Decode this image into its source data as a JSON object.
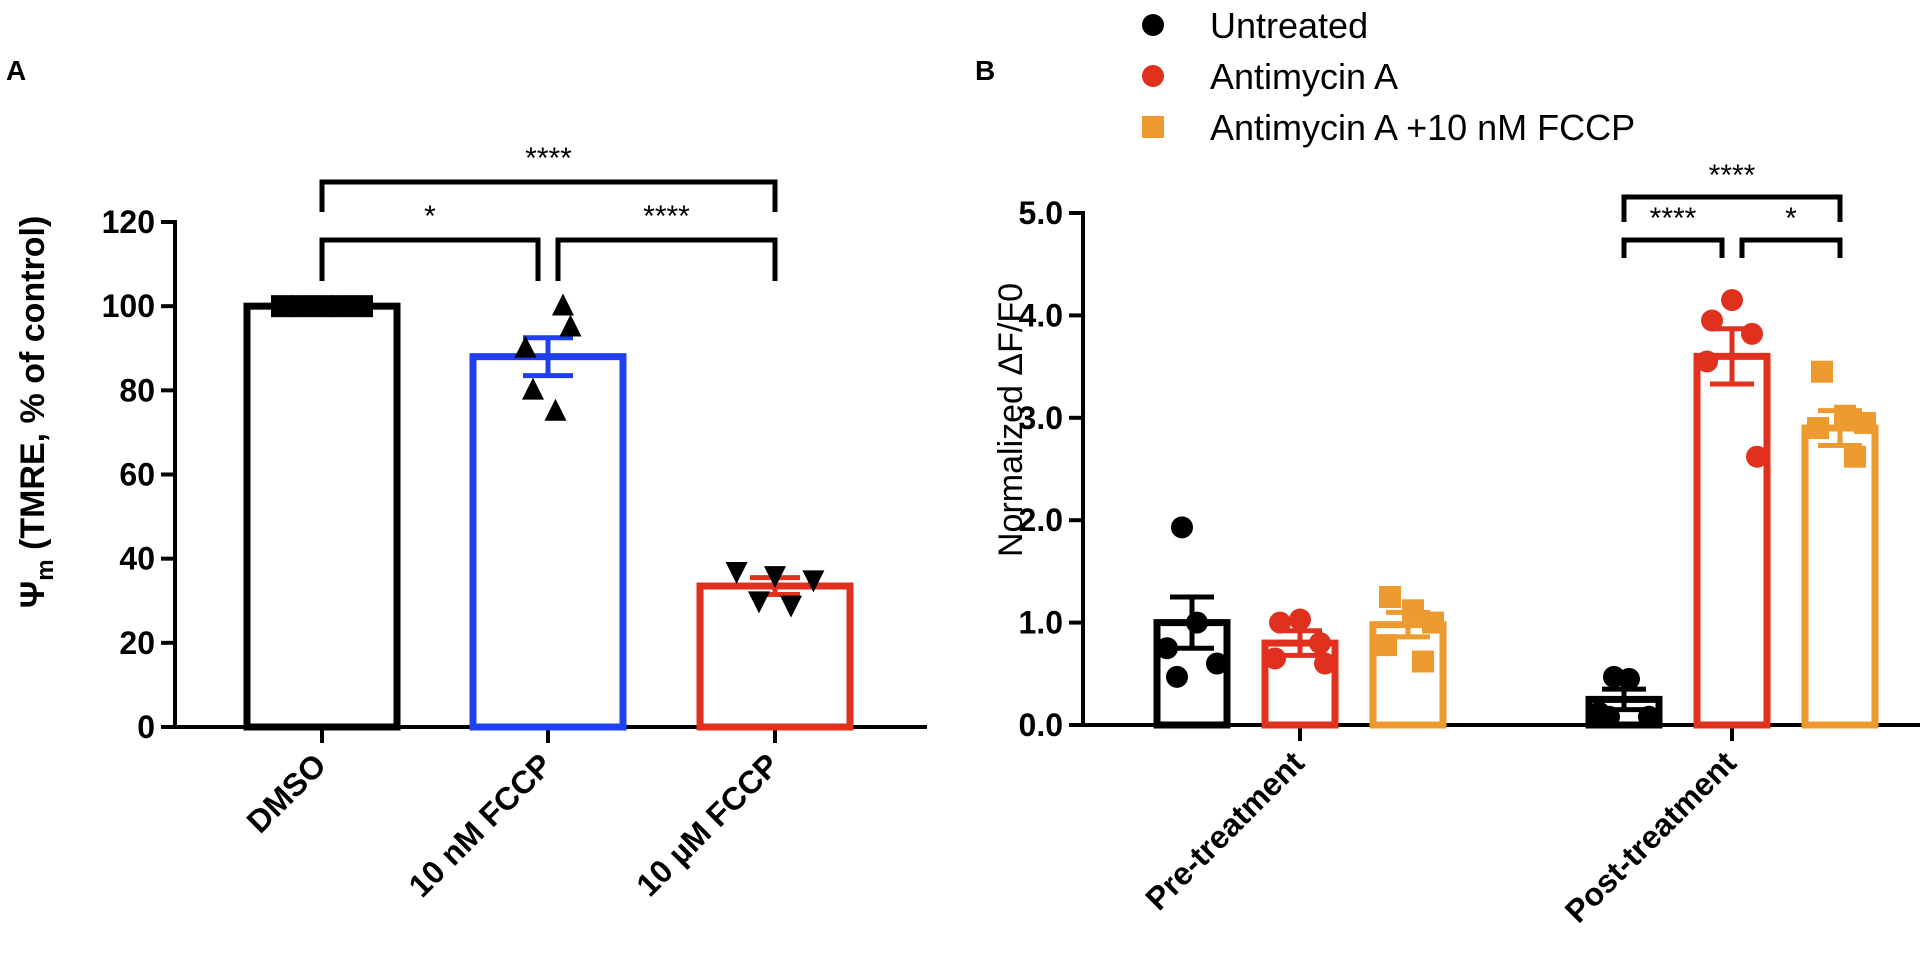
{
  "chart_data": [
    {
      "panel_label": "A",
      "type": "bar",
      "title": "",
      "xlabel": "",
      "ylabel": "Ψ",
      "ylabel_subscript": "m",
      "ylabel_rest": " (TMRE, % of control)",
      "ylim": [
        0,
        120
      ],
      "yticks": [
        0,
        20,
        40,
        60,
        80,
        100,
        120
      ],
      "categories": [
        "DMSO",
        "10 nM FCCP",
        "10 µM FCCP"
      ],
      "colors": [
        "#000000",
        "#1f3ff0",
        "#e0301e"
      ],
      "markers": [
        "square",
        "triangle",
        "triangle-down"
      ],
      "values": [
        100,
        88,
        33.5
      ],
      "sem": [
        0,
        4.5,
        2
      ],
      "points": [
        [
          100,
          100,
          100,
          100,
          100
        ],
        [
          100,
          95,
          90,
          80,
          75
        ],
        [
          37,
          36,
          35,
          30,
          29
        ]
      ],
      "significance": [
        {
          "from": 0,
          "to": 1,
          "label": "*",
          "level": 1
        },
        {
          "from": 1,
          "to": 2,
          "label": "****",
          "level": 1
        },
        {
          "from": 0,
          "to": 2,
          "label": "****",
          "level": 2
        }
      ]
    },
    {
      "panel_label": "B",
      "type": "bar",
      "title": "",
      "xlabel": "",
      "ylabel": "Normalized ΔF/F0",
      "ylim": [
        0,
        5
      ],
      "yticks": [
        "0.0",
        "1.0",
        "2.0",
        "3.0",
        "4.0",
        "5.0"
      ],
      "categories": [
        "Pre-treatment",
        "Post-treatment"
      ],
      "series": [
        {
          "name": "Untreated",
          "color": "#000000",
          "marker": "circle",
          "values": [
            1.0,
            0.25
          ],
          "sem": [
            0.25,
            0.1
          ],
          "points": [
            [
              1.93,
              1.0,
              0.75,
              0.6,
              0.47
            ],
            [
              0.47,
              0.45,
              0.12,
              0.08,
              0.08
            ]
          ]
        },
        {
          "name": "Antimycin A",
          "color": "#e0301e",
          "marker": "circle",
          "values": [
            0.8,
            3.6
          ],
          "sem": [
            0.12,
            0.27
          ],
          "points": [
            [
              1.03,
              1.0,
              0.8,
              0.65,
              0.6
            ],
            [
              4.15,
              3.95,
              3.82,
              3.55,
              2.62
            ]
          ]
        },
        {
          "name": "Antimycin A +10 nM FCCP",
          "color": "#ed9b2f",
          "marker": "square",
          "values": [
            0.98,
            2.9
          ],
          "sem": [
            0.12,
            0.17
          ],
          "points": [
            [
              1.25,
              1.12,
              1.0,
              0.78,
              0.62
            ],
            [
              3.45,
              3.02,
              2.95,
              2.9,
              2.62
            ]
          ]
        }
      ],
      "legend_position": "top",
      "significance": [
        {
          "group": 1,
          "from": 0,
          "to": 1,
          "label": "****",
          "level": 1
        },
        {
          "group": 1,
          "from": 1,
          "to": 2,
          "label": "*",
          "level": 1
        },
        {
          "group": 1,
          "from": 0,
          "to": 2,
          "label": "****",
          "level": 2
        }
      ]
    }
  ]
}
